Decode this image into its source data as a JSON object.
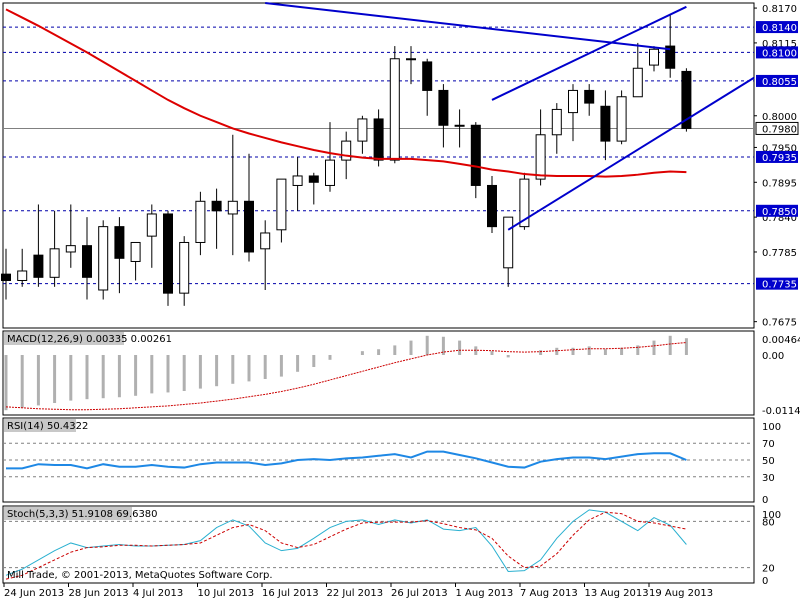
{
  "copyright": "Mill Trade, © 2001-2013, MetaQuotes Software Corp.",
  "colors": {
    "frame": "#000000",
    "bull_body": "#ffffff",
    "bear_body": "#000000",
    "ma": "#dd0000",
    "trendline": "#0000cc",
    "level_line": "#0000aa",
    "level_label_bg": "#0000cc",
    "current_label_bg": "#ffffff",
    "macd_hist": "#b0b0b0",
    "macd_signal": "#cc0000",
    "rsi": "#1e88e5",
    "stoch_main": "#2ab0d0",
    "stoch_signal": "#cc0000",
    "grid_dash": "#808080"
  },
  "chart_data": [
    {
      "type": "candlestick",
      "name": "price",
      "ylim": [
        0.7665,
        0.8178
      ],
      "y_ticks": [
        "0.8170",
        "0.8115",
        "0.8000",
        "0.7950",
        "0.7895",
        "0.7840",
        "0.7785",
        "0.7675"
      ],
      "x_labels": [
        "24 Jun 2013",
        "28 Jun 2013",
        "4 Jul 2013",
        "10 Jul 2013",
        "16 Jul 2013",
        "22 Jul 2013",
        "26 Jul 2013",
        "1 Aug 2013",
        "7 Aug 2013",
        "13 Aug 2013",
        "19 Aug 2013"
      ],
      "levels": [
        {
          "value": 0.814,
          "label": "0.8140"
        },
        {
          "value": 0.81,
          "label": "0.8100"
        },
        {
          "value": 0.8055,
          "label": "0.8055"
        },
        {
          "value": 0.7935,
          "label": "0.7935"
        },
        {
          "value": 0.785,
          "label": "0.7850"
        },
        {
          "value": 0.7735,
          "label": "0.7735"
        }
      ],
      "current_price": {
        "value": 0.798,
        "label": "0.7980"
      },
      "candles": [
        {
          "o": 0.775,
          "h": 0.779,
          "l": 0.771,
          "c": 0.774
        },
        {
          "o": 0.774,
          "h": 0.779,
          "l": 0.773,
          "c": 0.7755
        },
        {
          "o": 0.778,
          "h": 0.786,
          "l": 0.773,
          "c": 0.7745
        },
        {
          "o": 0.7745,
          "h": 0.785,
          "l": 0.773,
          "c": 0.779
        },
        {
          "o": 0.7785,
          "h": 0.786,
          "l": 0.776,
          "c": 0.7795
        },
        {
          "o": 0.7795,
          "h": 0.784,
          "l": 0.771,
          "c": 0.7745
        },
        {
          "o": 0.7725,
          "h": 0.7835,
          "l": 0.771,
          "c": 0.7825
        },
        {
          "o": 0.7825,
          "h": 0.784,
          "l": 0.772,
          "c": 0.7775
        },
        {
          "o": 0.777,
          "h": 0.78,
          "l": 0.774,
          "c": 0.78
        },
        {
          "o": 0.781,
          "h": 0.786,
          "l": 0.776,
          "c": 0.7845
        },
        {
          "o": 0.7845,
          "h": 0.785,
          "l": 0.77,
          "c": 0.772
        },
        {
          "o": 0.772,
          "h": 0.781,
          "l": 0.77,
          "c": 0.78
        },
        {
          "o": 0.78,
          "h": 0.788,
          "l": 0.778,
          "c": 0.7865
        },
        {
          "o": 0.7865,
          "h": 0.7885,
          "l": 0.779,
          "c": 0.785
        },
        {
          "o": 0.7845,
          "h": 0.797,
          "l": 0.778,
          "c": 0.7865
        },
        {
          "o": 0.7865,
          "h": 0.794,
          "l": 0.777,
          "c": 0.7785
        },
        {
          "o": 0.779,
          "h": 0.7835,
          "l": 0.7725,
          "c": 0.7815
        },
        {
          "o": 0.782,
          "h": 0.79,
          "l": 0.78,
          "c": 0.79
        },
        {
          "o": 0.789,
          "h": 0.7935,
          "l": 0.785,
          "c": 0.7905
        },
        {
          "o": 0.7905,
          "h": 0.791,
          "l": 0.786,
          "c": 0.7895
        },
        {
          "o": 0.789,
          "h": 0.799,
          "l": 0.788,
          "c": 0.793
        },
        {
          "o": 0.793,
          "h": 0.7975,
          "l": 0.79,
          "c": 0.796
        },
        {
          "o": 0.796,
          "h": 0.8,
          "l": 0.794,
          "c": 0.7995
        },
        {
          "o": 0.7995,
          "h": 0.801,
          "l": 0.792,
          "c": 0.793
        },
        {
          "o": 0.793,
          "h": 0.811,
          "l": 0.7925,
          "c": 0.809
        },
        {
          "o": 0.809,
          "h": 0.811,
          "l": 0.805,
          "c": 0.809
        },
        {
          "o": 0.8085,
          "h": 0.809,
          "l": 0.8,
          "c": 0.804
        },
        {
          "o": 0.804,
          "h": 0.805,
          "l": 0.795,
          "c": 0.7985
        },
        {
          "o": 0.7985,
          "h": 0.801,
          "l": 0.795,
          "c": 0.7985
        },
        {
          "o": 0.7985,
          "h": 0.799,
          "l": 0.787,
          "c": 0.789
        },
        {
          "o": 0.789,
          "h": 0.7905,
          "l": 0.7815,
          "c": 0.7825
        },
        {
          "o": 0.776,
          "h": 0.784,
          "l": 0.773,
          "c": 0.784
        },
        {
          "o": 0.7825,
          "h": 0.791,
          "l": 0.782,
          "c": 0.79
        },
        {
          "o": 0.79,
          "h": 0.801,
          "l": 0.789,
          "c": 0.797
        },
        {
          "o": 0.797,
          "h": 0.802,
          "l": 0.794,
          "c": 0.801
        },
        {
          "o": 0.8005,
          "h": 0.805,
          "l": 0.796,
          "c": 0.804
        },
        {
          "o": 0.804,
          "h": 0.805,
          "l": 0.8,
          "c": 0.802
        },
        {
          "o": 0.8015,
          "h": 0.804,
          "l": 0.793,
          "c": 0.796
        },
        {
          "o": 0.796,
          "h": 0.804,
          "l": 0.7955,
          "c": 0.803
        },
        {
          "o": 0.803,
          "h": 0.8115,
          "l": 0.803,
          "c": 0.8075
        },
        {
          "o": 0.808,
          "h": 0.811,
          "l": 0.807,
          "c": 0.8105
        },
        {
          "o": 0.811,
          "h": 0.816,
          "l": 0.806,
          "c": 0.8075
        },
        {
          "o": 0.807,
          "h": 0.8075,
          "l": 0.7975,
          "c": 0.798
        }
      ],
      "ma": [
        0.8168,
        0.8155,
        0.8142,
        0.8128,
        0.8114,
        0.81,
        0.8085,
        0.807,
        0.8055,
        0.804,
        0.8025,
        0.8012,
        0.8,
        0.799,
        0.798,
        0.7972,
        0.7965,
        0.7958,
        0.7952,
        0.7946,
        0.7941,
        0.7937,
        0.7934,
        0.7932,
        0.7932,
        0.7932,
        0.793,
        0.7928,
        0.7924,
        0.792,
        0.7915,
        0.7912,
        0.7908,
        0.7906,
        0.7905,
        0.7905,
        0.7905,
        0.7904,
        0.7905,
        0.7907,
        0.791,
        0.7912,
        0.7911
      ],
      "trendlines": [
        {
          "from": {
            "i": 16,
            "v": 0.8178
          },
          "to": {
            "i": 41,
            "v": 0.8105
          }
        },
        {
          "from": {
            "i": 30,
            "v": 0.8025
          },
          "to": {
            "i": 42,
            "v": 0.8172
          }
        },
        {
          "from": {
            "i": 31,
            "v": 0.782
          },
          "to": {
            "i": 47.5,
            "v": 0.806
          }
        }
      ]
    },
    {
      "type": "macd",
      "title": "MACD(12,26,9) 0.00335 0.00261",
      "ylim": [
        -0.0125,
        0.005
      ],
      "y_ticks": [
        "0.00464",
        "0.00",
        "-0.01147"
      ],
      "histogram": [
        -0.0115,
        -0.011,
        -0.0105,
        -0.01,
        -0.0095,
        -0.0092,
        -0.009,
        -0.0088,
        -0.0085,
        -0.008,
        -0.0078,
        -0.0075,
        -0.007,
        -0.0065,
        -0.006,
        -0.0055,
        -0.005,
        -0.0045,
        -0.0035,
        -0.0025,
        -0.001,
        0.0,
        0.0008,
        0.0012,
        0.002,
        0.003,
        0.004,
        0.0038,
        0.003,
        0.0018,
        0.0008,
        -0.0005,
        0.0,
        0.001,
        0.0015,
        0.0015,
        0.0018,
        0.0012,
        0.0015,
        0.002,
        0.003,
        0.004,
        0.0035
      ],
      "signal": [
        -0.0108,
        -0.011,
        -0.0112,
        -0.0113,
        -0.0114,
        -0.0114,
        -0.0113,
        -0.0112,
        -0.011,
        -0.0108,
        -0.0106,
        -0.0103,
        -0.01,
        -0.0096,
        -0.0092,
        -0.0087,
        -0.0082,
        -0.0076,
        -0.0069,
        -0.0061,
        -0.0052,
        -0.0043,
        -0.0034,
        -0.0025,
        -0.0016,
        -0.0008,
        0.0,
        0.0006,
        0.001,
        0.001,
        0.0009,
        0.0007,
        0.0006,
        0.0007,
        0.0009,
        0.0011,
        0.0013,
        0.0013,
        0.0014,
        0.0016,
        0.0019,
        0.0023,
        0.0026
      ]
    },
    {
      "type": "line",
      "title": "RSI(14) 50.4322",
      "ylim": [
        0,
        100
      ],
      "y_ticks": [
        "100",
        "70",
        "50",
        "30",
        "0"
      ],
      "levels": [
        70,
        50,
        30
      ],
      "values": [
        40,
        40,
        45,
        44,
        44,
        40,
        45,
        42,
        42,
        44,
        42,
        41,
        45,
        47,
        47,
        47,
        44,
        46,
        50,
        51,
        50,
        52,
        53,
        55,
        57,
        53,
        60,
        60,
        56,
        52,
        47,
        42,
        41,
        48,
        51,
        53,
        53,
        51,
        54,
        57,
        58,
        58,
        50
      ]
    },
    {
      "type": "line",
      "title": "Stoch(5,3,3) 51.9108 69.6380",
      "ylim": [
        0,
        100
      ],
      "y_ticks": [
        "100",
        "80",
        "20",
        "0"
      ],
      "levels": [
        80,
        20
      ],
      "main": [
        10,
        18,
        30,
        42,
        52,
        46,
        48,
        50,
        48,
        48,
        49,
        50,
        55,
        72,
        82,
        74,
        52,
        42,
        45,
        58,
        72,
        80,
        82,
        76,
        82,
        78,
        82,
        70,
        68,
        72,
        48,
        15,
        16,
        30,
        58,
        80,
        95,
        92,
        80,
        68,
        85,
        75,
        50
      ],
      "signal": [
        5,
        10,
        20,
        30,
        40,
        46,
        47,
        49,
        49,
        48,
        49,
        50,
        52,
        62,
        72,
        76,
        68,
        52,
        46,
        50,
        60,
        70,
        78,
        79,
        79,
        79,
        81,
        77,
        72,
        69,
        58,
        35,
        20,
        22,
        38,
        62,
        82,
        92,
        90,
        80,
        78,
        74,
        70
      ]
    }
  ]
}
